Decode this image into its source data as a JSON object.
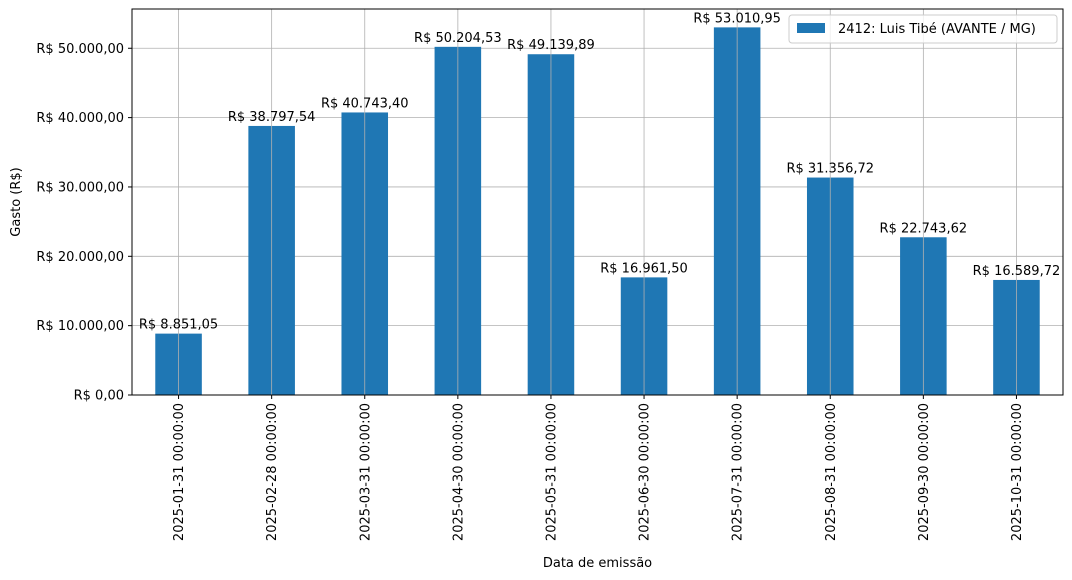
{
  "chart_data": {
    "type": "bar",
    "xlabel": "Data de emissão",
    "ylabel": "Gasto (R$)",
    "categories": [
      "2025-01-31 00:00:00",
      "2025-02-28 00:00:00",
      "2025-03-31 00:00:00",
      "2025-04-30 00:00:00",
      "2025-05-31 00:00:00",
      "2025-06-30 00:00:00",
      "2025-07-31 00:00:00",
      "2025-08-31 00:00:00",
      "2025-09-30 00:00:00",
      "2025-10-31 00:00:00"
    ],
    "series": [
      {
        "name": "2412: Luis Tibé (AVANTE / MG)",
        "color": "#1f77b4",
        "values": [
          8851.05,
          38797.54,
          40743.4,
          50204.53,
          49139.89,
          16961.5,
          53010.95,
          31356.72,
          22743.62,
          16589.72
        ],
        "data_labels": [
          "R$ 8.851,05",
          "R$ 38.797,54",
          "R$ 40.743,40",
          "R$ 50.204,53",
          "R$ 49.139,89",
          "R$ 16.961,50",
          "R$ 53.010,95",
          "R$ 31.356,72",
          "R$ 22.743,62",
          "R$ 16.589,72"
        ]
      }
    ],
    "ylim": [
      0,
      55661.5
    ],
    "yticks": [
      0,
      10000,
      20000,
      30000,
      40000,
      50000
    ],
    "ytick_labels": [
      "R$ 0,00",
      "R$ 10.000,00",
      "R$ 20.000,00",
      "R$ 30.000,00",
      "R$ 40.000,00",
      "R$ 50.000,00"
    ],
    "grid": true,
    "legend_position": "top-right"
  }
}
